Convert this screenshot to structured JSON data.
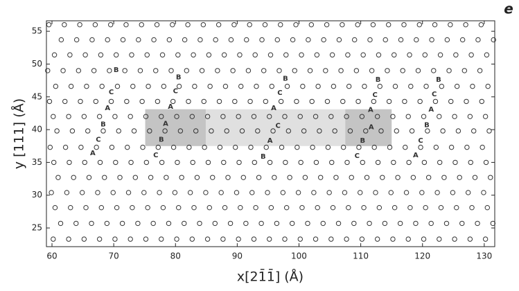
{
  "chart_data": {
    "type": "scatter",
    "panel_label": "e",
    "x_label": "x[21̄1̄] (Å)",
    "y_label": "y [111] (Å)",
    "xlim": [
      59.1,
      131.7
    ],
    "ylim": [
      22.15,
      56.6
    ],
    "xticks": [
      60,
      70,
      80,
      90,
      100,
      110,
      120,
      130
    ],
    "yticks": [
      25,
      30,
      35,
      40,
      45,
      50,
      55
    ],
    "marker_color": "#333333",
    "regions": [
      {
        "xlim": [
          75.1,
          115.0
        ],
        "ylim": [
          37.5,
          43.1
        ],
        "color": "#e0e0e0"
      },
      {
        "xlim": [
          75.1,
          84.9
        ],
        "ylim": [
          37.5,
          43.1
        ],
        "color": "#c4c4c4"
      },
      {
        "xlim": [
          107.5,
          115.0
        ],
        "ylim": [
          37.5,
          43.1
        ],
        "color": "#c4c4c4"
      }
    ],
    "rows": [
      {
        "y": 23.3,
        "x": [
          60.2,
          62.7,
          65.2,
          67.7,
          70.2,
          72.7,
          75.2,
          77.7,
          80.2,
          82.7,
          85.2,
          87.7,
          90.2,
          92.7,
          95.2,
          97.7,
          100.2,
          102.7,
          105.2,
          107.7,
          110.2,
          112.7,
          115.2,
          117.7,
          120.2,
          122.7,
          125.2,
          127.7,
          130.2
        ]
      },
      {
        "y": 25.7,
        "x": [
          61.4,
          63.9,
          66.4,
          68.9,
          71.4,
          73.9,
          76.4,
          78.9,
          81.4,
          83.9,
          86.4,
          88.9,
          91.4,
          93.9,
          96.4,
          98.9,
          101.4,
          103.9,
          106.4,
          108.9,
          111.4,
          113.9,
          116.4,
          118.9,
          121.4,
          123.9,
          126.4,
          128.9,
          131.4
        ]
      },
      {
        "y": 28.1,
        "x": [
          60.5,
          63,
          65.5,
          68,
          70.5,
          73,
          75.5,
          78,
          80.5,
          83,
          85.5,
          88,
          90.5,
          93,
          95.5,
          98,
          100.5,
          103,
          105.5,
          108,
          110.5,
          113,
          115.5,
          118,
          120.5,
          123,
          125.5,
          128,
          130.5
        ]
      },
      {
        "y": 30.4,
        "x": [
          59.9,
          62.4,
          64.9,
          67.4,
          69.9,
          72.4,
          74.9,
          77.4,
          79.9,
          82.4,
          84.9,
          87.4,
          89.9,
          92.4,
          94.9,
          97.4,
          99.9,
          102.4,
          104.9,
          107.4,
          109.9,
          112.4,
          114.9,
          117.4,
          119.9,
          122.4,
          124.9,
          127.4,
          129.9
        ]
      },
      {
        "y": 32.7,
        "x": [
          61,
          63.5,
          66,
          68.5,
          71,
          73.5,
          76,
          78.5,
          81,
          83.5,
          86,
          88.5,
          91,
          93.5,
          96,
          98.5,
          101,
          103.5,
          106,
          108.5,
          111,
          113.5,
          116,
          118.5,
          121,
          123.5,
          126,
          128.5,
          131
        ]
      },
      {
        "y": 35.0,
        "x": [
          60.3,
          62.8,
          65.3,
          67.8,
          70.3,
          72.8,
          75.3,
          77.8,
          80.3,
          82.8,
          85.3,
          87.8,
          90.3,
          92.8,
          95.3,
          97.8,
          100.3,
          102.8,
          105.3,
          107.8,
          110.3,
          112.8,
          115.3,
          117.8,
          120.3,
          122.8,
          125.3,
          127.8,
          130.3
        ]
      },
      {
        "y": 37.3,
        "x": [
          59.7,
          62.2,
          64.7,
          67.2,
          69.7,
          72.2,
          74.7,
          77.2,
          79.7,
          82.2,
          84.7,
          87.2,
          89.7,
          92.2,
          94.7,
          97.2,
          99.7,
          102.2,
          104.7,
          107.2,
          109.7,
          112.2,
          114.7,
          117.2,
          119.7,
          122.2,
          124.7,
          127.2,
          129.7
        ]
      },
      {
        "y": 39.8,
        "x": [
          60.8,
          63.3,
          65.8,
          68.3,
          70.8,
          73.3,
          75.8,
          78.3,
          80.8,
          83.3,
          85.8,
          88.3,
          90.8,
          93.3,
          95.8,
          98.3,
          100.8,
          103.3,
          105.8,
          108.3,
          110.8,
          113.3,
          115.8,
          118.3,
          120.8,
          123.3,
          125.8,
          128.3,
          130.8
        ]
      },
      {
        "y": 42.0,
        "x": [
          60.2,
          62.7,
          65.2,
          67.7,
          70.2,
          72.7,
          75.2,
          77.7,
          80.2,
          82.7,
          85.2,
          87.7,
          90.2,
          92.7,
          95.2,
          97.7,
          100.2,
          102.7,
          105.2,
          107.7,
          110.2,
          112.7,
          115.2,
          117.7,
          120.2,
          122.7,
          125.2,
          127.7,
          130.2
        ]
      },
      {
        "y": 44.3,
        "x": [
          59.6,
          62.1,
          64.6,
          67.1,
          69.6,
          72.1,
          74.6,
          77.1,
          79.6,
          82.1,
          84.6,
          87.1,
          89.6,
          92.1,
          94.6,
          97.1,
          99.6,
          102.1,
          104.6,
          107.1,
          109.6,
          112.1,
          114.6,
          117.1,
          119.6,
          122.1,
          124.6,
          127.1,
          129.6
        ]
      },
      {
        "y": 46.6,
        "x": [
          60.6,
          63.1,
          65.6,
          68.1,
          70.6,
          73.1,
          75.6,
          78.1,
          80.6,
          83.1,
          85.6,
          88.1,
          90.6,
          93.1,
          95.6,
          98.1,
          100.6,
          103.1,
          105.6,
          108.1,
          110.6,
          113.1,
          115.6,
          118.1,
          120.6,
          123.1,
          125.6,
          128.1,
          130.6
        ]
      },
      {
        "y": 49.0,
        "x": [
          59.3,
          61.8,
          64.3,
          66.8,
          69.3,
          71.8,
          74.3,
          76.8,
          79.3,
          81.8,
          84.3,
          86.8,
          89.3,
          91.8,
          94.3,
          96.8,
          99.3,
          101.8,
          104.3,
          106.8,
          109.3,
          111.8,
          114.3,
          116.8,
          119.3,
          121.8,
          124.3,
          126.8,
          129.3
        ]
      },
      {
        "y": 51.4,
        "x": [
          60.4,
          62.9,
          65.4,
          67.9,
          70.4,
          72.9,
          75.4,
          77.9,
          80.4,
          82.9,
          85.4,
          87.9,
          90.4,
          92.9,
          95.4,
          97.9,
          100.4,
          102.9,
          105.4,
          107.9,
          110.4,
          112.9,
          115.4,
          117.9,
          120.4,
          122.9,
          125.4,
          127.9,
          130.4
        ]
      },
      {
        "y": 53.7,
        "x": [
          61.5,
          64,
          66.5,
          69,
          71.5,
          74,
          76.5,
          79,
          81.5,
          84,
          86.5,
          89,
          91.5,
          94,
          96.5,
          99,
          101.5,
          104,
          106.5,
          109,
          111.5,
          114,
          116.5,
          119,
          121.5,
          124,
          126.5,
          129,
          131.5
        ]
      },
      {
        "y": 56.0,
        "x": [
          59.5,
          62,
          64.5,
          67,
          69.5,
          72,
          74.5,
          77,
          79.5,
          82,
          84.5,
          87,
          89.5,
          92,
          94.5,
          97,
          99.5,
          102,
          104.5,
          107,
          109.5,
          112,
          114.5,
          117,
          119.5,
          122,
          124.5,
          127,
          129.5
        ]
      }
    ],
    "annotations": [
      {
        "text": "B",
        "x": 70.4,
        "y": 49.1
      },
      {
        "text": "C",
        "x": 69.6,
        "y": 45.7
      },
      {
        "text": "A",
        "x": 69.0,
        "y": 43.3
      },
      {
        "text": "B",
        "x": 68.3,
        "y": 40.8
      },
      {
        "text": "C",
        "x": 67.5,
        "y": 38.5
      },
      {
        "text": "A",
        "x": 66.6,
        "y": 36.4
      },
      {
        "text": "B",
        "x": 80.5,
        "y": 48.0
      },
      {
        "text": "C",
        "x": 80.0,
        "y": 45.9
      },
      {
        "text": "A",
        "x": 79.2,
        "y": 43.5
      },
      {
        "text": "A",
        "x": 78.4,
        "y": 40.9
      },
      {
        "text": "B",
        "x": 77.7,
        "y": 38.5
      },
      {
        "text": "C",
        "x": 76.8,
        "y": 36.1
      },
      {
        "text": "B",
        "x": 97.8,
        "y": 47.8
      },
      {
        "text": "C",
        "x": 96.9,
        "y": 45.6
      },
      {
        "text": "A",
        "x": 95.9,
        "y": 43.3
      },
      {
        "text": "C",
        "x": 96.6,
        "y": 40.6
      },
      {
        "text": "A",
        "x": 95.3,
        "y": 38.3
      },
      {
        "text": "B",
        "x": 94.2,
        "y": 35.9
      },
      {
        "text": "B",
        "x": 112.8,
        "y": 47.6
      },
      {
        "text": "C",
        "x": 112.3,
        "y": 45.3
      },
      {
        "text": "A",
        "x": 111.6,
        "y": 43.0
      },
      {
        "text": "A",
        "x": 111.7,
        "y": 40.4
      },
      {
        "text": "B",
        "x": 110.3,
        "y": 38.3
      },
      {
        "text": "C",
        "x": 109.4,
        "y": 36.0
      },
      {
        "text": "B",
        "x": 122.6,
        "y": 47.6
      },
      {
        "text": "C",
        "x": 121.9,
        "y": 45.4
      },
      {
        "text": "A",
        "x": 121.4,
        "y": 43.1
      },
      {
        "text": "B",
        "x": 120.7,
        "y": 40.7
      },
      {
        "text": "C",
        "x": 119.7,
        "y": 38.3
      },
      {
        "text": "A",
        "x": 118.9,
        "y": 36.1
      }
    ]
  }
}
